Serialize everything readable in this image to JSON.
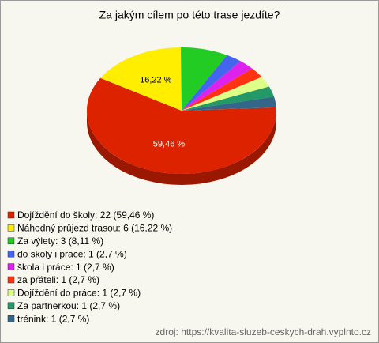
{
  "chart_data": {
    "type": "pie3d",
    "title": "Za jakým cílem po této trase jezdíte?",
    "categories": [
      "Dojíždění do školy: 22 (59,46 %)",
      "Náhodný průjezd trasou: 6 (16,22 %)",
      "Za výlety: 3 (8,11 %)",
      "do skoly i prace: 1 (2,7 %)",
      "škola i práce: 1 (2,7 %)",
      "za přáteli: 1 (2,7 %)",
      "Dojíždění do práce: 1 (2,7 %)",
      "Za partnerkou: 1 (2,7 %)",
      "trénink: 1 (2,7 %)"
    ],
    "values": [
      59.46,
      16.22,
      8.11,
      2.7,
      2.7,
      2.7,
      2.7,
      2.7,
      2.7
    ],
    "value_labels": [
      "59,46 %",
      "16,22 %",
      null,
      null,
      null,
      null,
      null,
      null,
      null
    ],
    "colors": [
      "#dd2200",
      "#ffee00",
      "#22cc22",
      "#4466ee",
      "#dd22ee",
      "#ff3311",
      "#ddff88",
      "#229966",
      "#336688"
    ],
    "source": "zdroj: https://kvalita-sluzeb-ceskych-drah.vyplnto.cz"
  }
}
